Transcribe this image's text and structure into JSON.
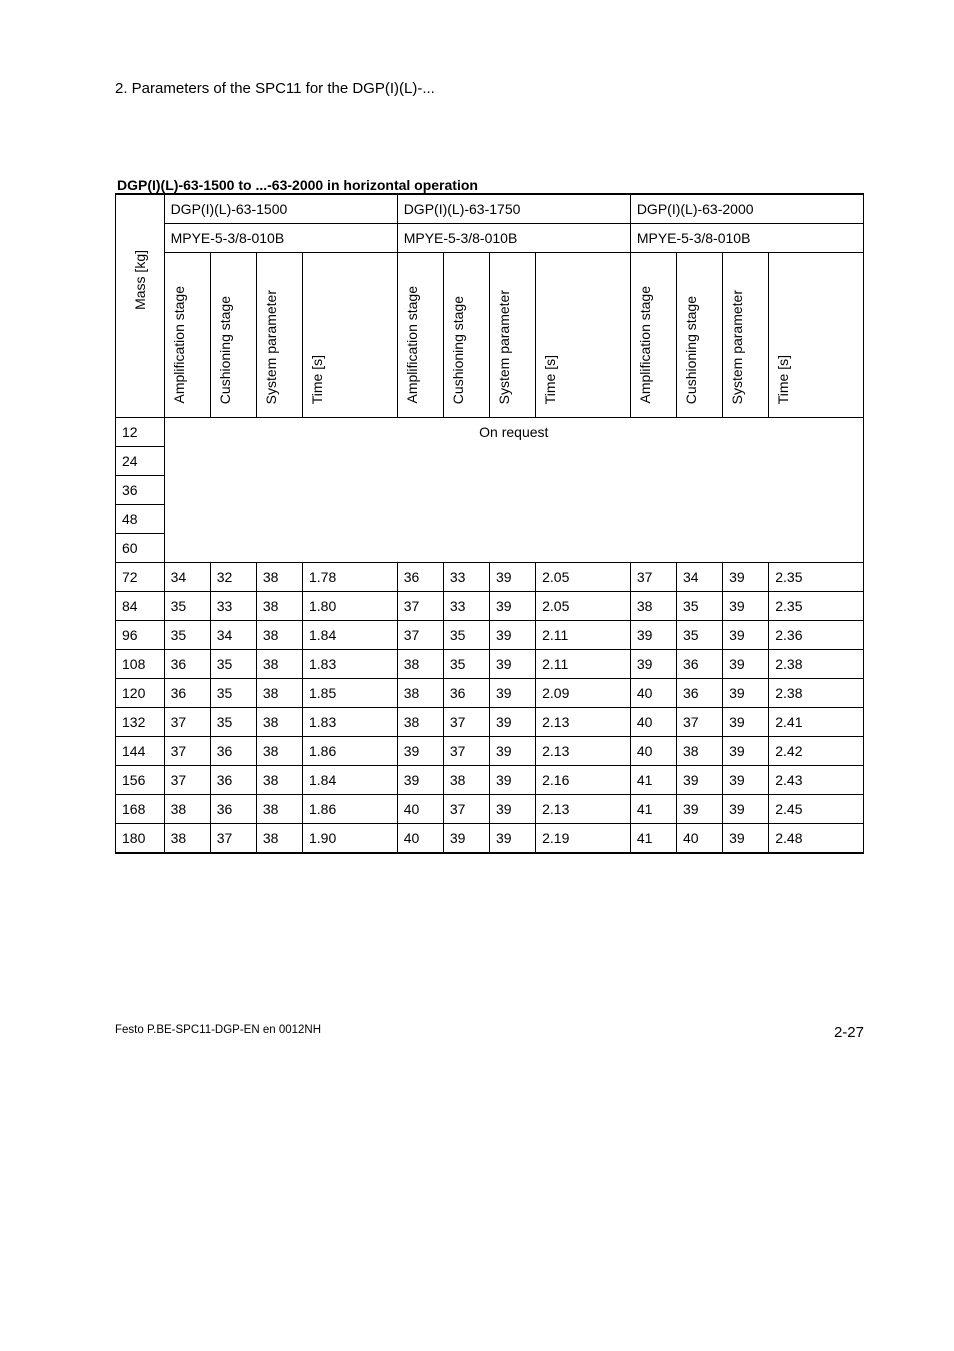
{
  "page": {
    "section_heading": "2.   Parameters of the SPC11 for the DGP(I)(L)-...",
    "footer_left": "Festo P.BE-SPC11-DGP-EN  en 0012NH",
    "footer_right": "2-27"
  },
  "table": {
    "title": "DGP(I)(L)-63-1500 to ...-63-2000 in horizontal operation",
    "mass_label": "Mass [kg]",
    "on_request_label": "On request",
    "groups": [
      {
        "device": "DGP(I)(L)-63-1500",
        "mpye": "MPYE-5-3/8-010B"
      },
      {
        "device": "DGP(I)(L)-63-1750",
        "mpye": "MPYE-5-3/8-010B"
      },
      {
        "device": "DGP(I)(L)-63-2000",
        "mpye": "MPYE-5-3/8-010B"
      }
    ],
    "col_headers": {
      "amp": "Amplification stage",
      "cush": "Cushioning stage",
      "sys": "System parameter",
      "time": "Time [s]"
    },
    "on_request_masses": [
      "12",
      "24",
      "36",
      "48",
      "60"
    ],
    "rows": [
      {
        "mass": "72",
        "g1": [
          "34",
          "32",
          "38",
          "1.78"
        ],
        "g2": [
          "36",
          "33",
          "39",
          "2.05"
        ],
        "g3": [
          "37",
          "34",
          "39",
          "2.35"
        ]
      },
      {
        "mass": "84",
        "g1": [
          "35",
          "33",
          "38",
          "1.80"
        ],
        "g2": [
          "37",
          "33",
          "39",
          "2.05"
        ],
        "g3": [
          "38",
          "35",
          "39",
          "2.35"
        ]
      },
      {
        "mass": "96",
        "g1": [
          "35",
          "34",
          "38",
          "1.84"
        ],
        "g2": [
          "37",
          "35",
          "39",
          "2.11"
        ],
        "g3": [
          "39",
          "35",
          "39",
          "2.36"
        ]
      },
      {
        "mass": "108",
        "g1": [
          "36",
          "35",
          "38",
          "1.83"
        ],
        "g2": [
          "38",
          "35",
          "39",
          "2.11"
        ],
        "g3": [
          "39",
          "36",
          "39",
          "2.38"
        ]
      },
      {
        "mass": "120",
        "g1": [
          "36",
          "35",
          "38",
          "1.85"
        ],
        "g2": [
          "38",
          "36",
          "39",
          "2.09"
        ],
        "g3": [
          "40",
          "36",
          "39",
          "2.38"
        ]
      },
      {
        "mass": "132",
        "g1": [
          "37",
          "35",
          "38",
          "1.83"
        ],
        "g2": [
          "38",
          "37",
          "39",
          "2.13"
        ],
        "g3": [
          "40",
          "37",
          "39",
          "2.41"
        ]
      },
      {
        "mass": "144",
        "g1": [
          "37",
          "36",
          "38",
          "1.86"
        ],
        "g2": [
          "39",
          "37",
          "39",
          "2.13"
        ],
        "g3": [
          "40",
          "38",
          "39",
          "2.42"
        ]
      },
      {
        "mass": "156",
        "g1": [
          "37",
          "36",
          "38",
          "1.84"
        ],
        "g2": [
          "39",
          "38",
          "39",
          "2.16"
        ],
        "g3": [
          "41",
          "39",
          "39",
          "2.43"
        ]
      },
      {
        "mass": "168",
        "g1": [
          "38",
          "36",
          "38",
          "1.86"
        ],
        "g2": [
          "40",
          "37",
          "39",
          "2.13"
        ],
        "g3": [
          "41",
          "39",
          "39",
          "2.45"
        ]
      },
      {
        "mass": "180",
        "g1": [
          "38",
          "37",
          "38",
          "1.90"
        ],
        "g2": [
          "40",
          "39",
          "39",
          "2.19"
        ],
        "g3": [
          "41",
          "40",
          "39",
          "2.48"
        ]
      }
    ]
  }
}
